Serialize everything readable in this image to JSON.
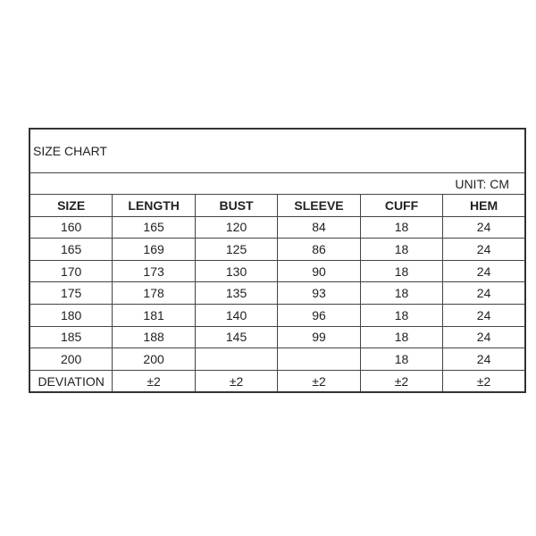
{
  "title": "SIZE CHART",
  "unit": "UNIT: CM",
  "headers": [
    "SIZE",
    "LENGTH",
    "BUST",
    "SLEEVE",
    "CUFF",
    "HEM"
  ],
  "rows": [
    [
      "160",
      "165",
      "120",
      "84",
      "18",
      "24"
    ],
    [
      "165",
      "169",
      "125",
      "86",
      "18",
      "24"
    ],
    [
      "170",
      "173",
      "130",
      "90",
      "18",
      "24"
    ],
    [
      "175",
      "178",
      "135",
      "93",
      "18",
      "24"
    ],
    [
      "180",
      "181",
      "140",
      "96",
      "18",
      "24"
    ],
    [
      "185",
      "188",
      "145",
      "99",
      "18",
      "24"
    ],
    [
      "200",
      "200",
      "",
      "",
      "18",
      "24"
    ],
    [
      "DEVIATION",
      "±2",
      "±2",
      "±2",
      "±2",
      "±2"
    ]
  ]
}
